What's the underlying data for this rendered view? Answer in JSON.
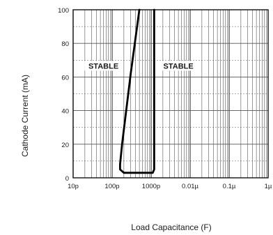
{
  "chart_data": {
    "type": "line",
    "title": "",
    "xlabel": "Load Capacitance (F)",
    "ylabel": "Cathode Current (mA)",
    "x_scale": "log",
    "xlim": [
      1e-11,
      1e-06
    ],
    "ylim": [
      0,
      100
    ],
    "x_ticks": [
      {
        "value": 1e-11,
        "label": "10p"
      },
      {
        "value": 1e-10,
        "label": "100p"
      },
      {
        "value": 1e-09,
        "label": "1000p"
      },
      {
        "value": 1e-08,
        "label": "0.01µ"
      },
      {
        "value": 1e-07,
        "label": "0.1µ"
      },
      {
        "value": 1e-06,
        "label": "1µ"
      }
    ],
    "y_ticks": [
      {
        "value": 0,
        "label": "0"
      },
      {
        "value": 20,
        "label": "20"
      },
      {
        "value": 40,
        "label": "40"
      },
      {
        "value": 60,
        "label": "60"
      },
      {
        "value": 80,
        "label": "80"
      },
      {
        "value": 100,
        "label": "100"
      }
    ],
    "grid": true,
    "series": [
      {
        "x": [
          5e-10,
          3e-10,
          1.8e-10,
          1.6e-10,
          1.6e-10,
          2e-10,
          1.1e-09,
          1.2e-09,
          1.2e-09
        ],
        "y": [
          100,
          62,
          20,
          8,
          5,
          3,
          3,
          5,
          100
        ]
      }
    ],
    "annotations": [
      {
        "text": "STABLE",
        "x": 6e-11,
        "y": 65
      },
      {
        "text": "STABLE",
        "x": 5e-09,
        "y": 65
      }
    ]
  }
}
